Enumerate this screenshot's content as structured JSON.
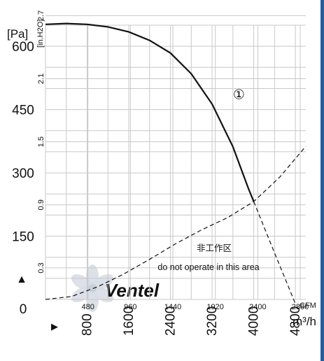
{
  "chart_data": {
    "type": "line",
    "y_unit_primary": "[Pa]",
    "y_unit_secondary": "[in.H2O]",
    "x_unit_primary": "m³/h",
    "x_unit_secondary": "CFM",
    "y_ticks_pa": [
      "0",
      "150",
      "300",
      "450",
      "600"
    ],
    "y_ticks_inh2o": [
      "0.3",
      "0.9",
      "1.5",
      "2.1",
      "2.7"
    ],
    "x_ticks_cfm": [
      "480",
      "960",
      "1440",
      "1920",
      "2400",
      "2880"
    ],
    "x_ticks_m3h": [
      "800",
      "1600",
      "2400",
      "3200",
      "4000",
      "4800"
    ],
    "xlim": [
      0,
      5000
    ],
    "ylim": [
      0,
      650
    ],
    "grid": true,
    "curve_label": "①",
    "curve_label_at": [
      3600,
      475
    ],
    "no_operate_label_cn": "非工作区",
    "no_operate_label_en": "do not operate in this area",
    "series": [
      {
        "name": "①",
        "style": "solid",
        "points": [
          [
            0,
            652
          ],
          [
            400,
            654
          ],
          [
            800,
            652
          ],
          [
            1200,
            646
          ],
          [
            1600,
            634
          ],
          [
            2000,
            614
          ],
          [
            2400,
            584
          ],
          [
            2800,
            535
          ],
          [
            3200,
            463
          ],
          [
            3600,
            362
          ],
          [
            3900,
            262
          ],
          [
            4000,
            232
          ]
        ]
      },
      {
        "style": "dashed",
        "points": [
          [
            0,
            0
          ],
          [
            500,
            7
          ],
          [
            1000,
            30
          ],
          [
            1500,
            60
          ],
          [
            2000,
            95
          ],
          [
            2500,
            132
          ],
          [
            3000,
            165
          ],
          [
            3500,
            194
          ],
          [
            4000,
            232
          ],
          [
            4500,
            290
          ],
          [
            5000,
            363
          ]
        ]
      },
      {
        "style": "dashed",
        "points": [
          [
            4000,
            232
          ],
          [
            4400,
            110
          ],
          [
            4800,
            -10
          ]
        ]
      }
    ]
  },
  "arrows": {
    "up": "▲",
    "right": "▶"
  },
  "watermark_brand": "Ventel",
  "colors": {
    "curve": "#111111",
    "grid": "#c8c8c8",
    "watermark": "#d8dde6",
    "edge": "#1e5fa8"
  }
}
